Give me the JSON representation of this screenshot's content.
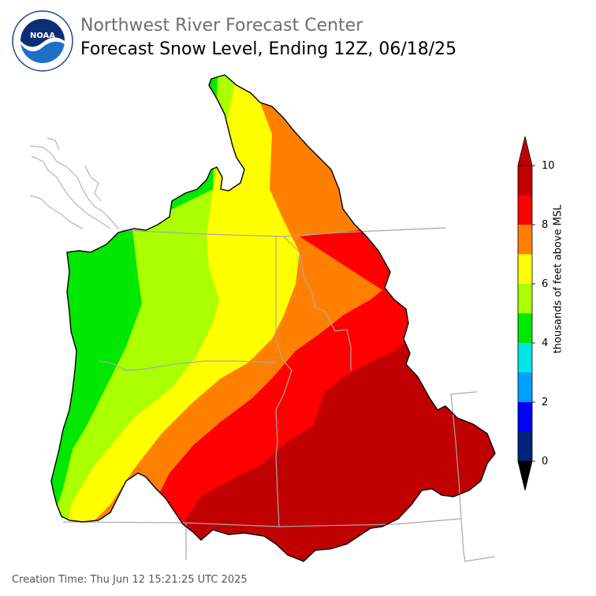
{
  "header": {
    "org": "Northwest River Forecast Center",
    "title": "Forecast Snow Level, Ending 12Z, 06/18/25"
  },
  "logo": {
    "center_text": "NOAA",
    "ring_text": "NATIONAL OCEANIC AND ATMOSPHERIC ADMINISTRATION · U.S. DEPARTMENT OF COMMERCE"
  },
  "footer": {
    "creation_time": "Creation Time: Thu Jun 12 15:21:25 UTC 2025"
  },
  "legend": {
    "label": "thousands of feet above MSL",
    "ticks": [
      "0",
      "2",
      "4",
      "6",
      "8",
      "10"
    ],
    "colors": [
      "#000000",
      "#00237c",
      "#0000ff",
      "#00a0ff",
      "#00e5e5",
      "#00e800",
      "#aaff00",
      "#ffff00",
      "#ff8000",
      "#ff0000",
      "#c00000"
    ]
  },
  "map_colors": {
    "green": "#00e800",
    "lime": "#aaff00",
    "yellow": "#ffff00",
    "orange": "#ff8000",
    "red": "#ff0000",
    "darkred": "#c00000",
    "border": "#a8a8a8"
  }
}
